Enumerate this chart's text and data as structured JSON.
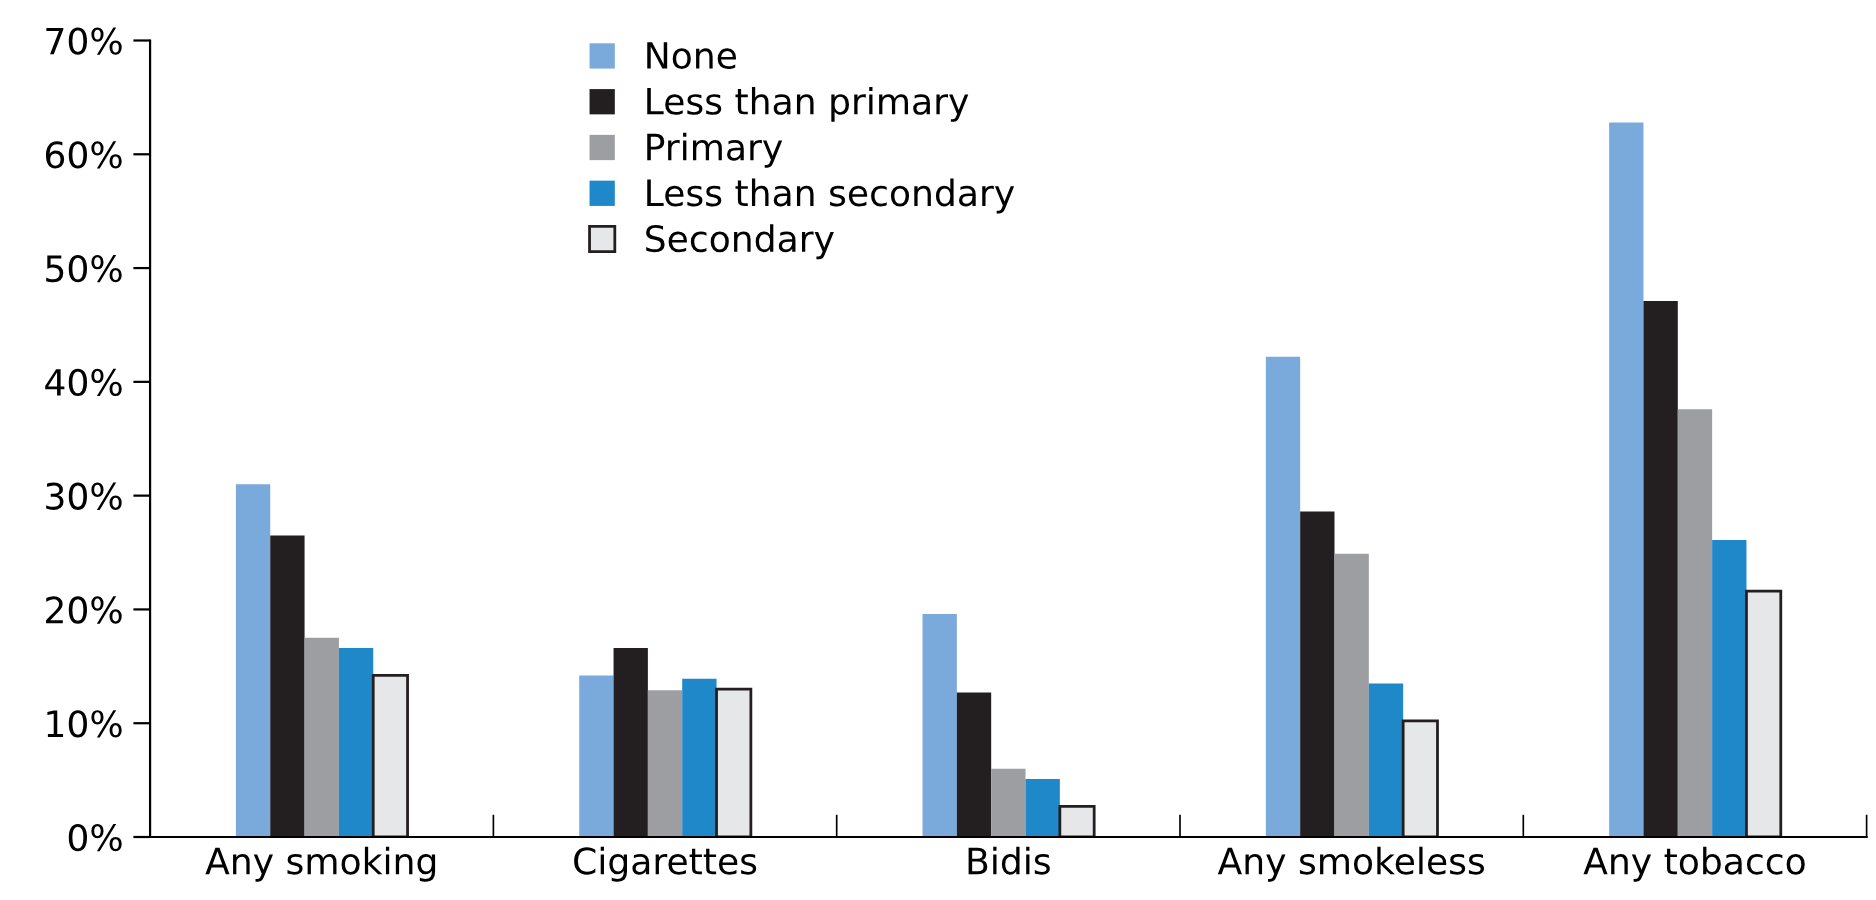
{
  "chart_data": {
    "type": "bar",
    "categories": [
      "Any smoking",
      "Cigarettes",
      "Bidis",
      "Any smokeless",
      "Any tobacco"
    ],
    "series": [
      {
        "name": "None",
        "color": "#7aaadb",
        "values": [
          31.0,
          14.2,
          19.6,
          42.2,
          62.8
        ]
      },
      {
        "name": "Less than primary",
        "color": "#231f20",
        "values": [
          26.5,
          16.6,
          12.7,
          28.6,
          47.1
        ]
      },
      {
        "name": "Primary",
        "color": "#9d9ea2",
        "values": [
          17.5,
          12.9,
          6.0,
          24.9,
          37.6
        ]
      },
      {
        "name": "Less than secondary",
        "color": "#1f88c9",
        "values": [
          16.6,
          13.9,
          5.1,
          13.5,
          26.1
        ]
      },
      {
        "name": "Secondary",
        "color": "#e6e7e8",
        "values": [
          14.2,
          13.0,
          2.7,
          10.2,
          21.6
        ]
      }
    ],
    "ylim": [
      0,
      70
    ],
    "yticks": [
      {
        "value": 0,
        "label": "0%"
      },
      {
        "value": 10,
        "label": "10%"
      },
      {
        "value": 20,
        "label": "20%"
      },
      {
        "value": 30,
        "label": "30%"
      },
      {
        "value": 40,
        "label": "40%"
      },
      {
        "value": 50,
        "label": "50%"
      },
      {
        "value": 60,
        "label": "60%"
      },
      {
        "value": 70,
        "label": "70%"
      }
    ],
    "grid": false,
    "legend": "top"
  }
}
